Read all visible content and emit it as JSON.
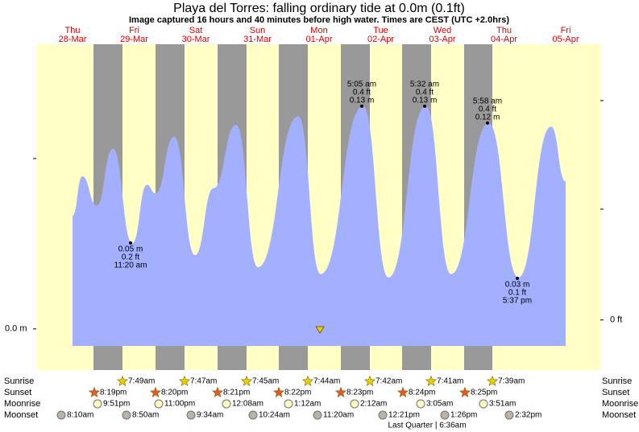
{
  "chart_data": {
    "type": "tide",
    "title": "Playa del Torres: falling  ordinary tide at 0.0m (0.1ft)",
    "subtitle": "Image captured 16 hours and 40 minutes before high water. Times are CEST (UTC +2.0hrs)",
    "days": [
      [
        "Thu",
        "28-Mar"
      ],
      [
        "Fri",
        "29-Mar"
      ],
      [
        "Sat",
        "30-Mar"
      ],
      [
        "Sun",
        "31-Mar"
      ],
      [
        "Mon",
        "01-Apr"
      ],
      [
        "Tue",
        "02-Apr"
      ],
      [
        "Wed",
        "03-Apr"
      ],
      [
        "Thu",
        "04-Apr"
      ],
      [
        "Fri",
        "05-Apr"
      ]
    ],
    "color": "#a3b0ff",
    "x": [
      12,
      15.8,
      21.4,
      27.7,
      35.3,
      41.0,
      44.3,
      51.5,
      59.7,
      66.9,
      75.7,
      84.2,
      99.9,
      108.6,
      125.1,
      135.0,
      149.5,
      159.4,
      174.0,
      185.6,
      198.3,
      204
    ],
    "values": [
      0.066,
      0.089,
      0.072,
      0.105,
      0.05,
      0.084,
      0.079,
      0.112,
      0.043,
      0.082,
      0.119,
      0.036,
      0.124,
      0.032,
      0.13,
      0.03,
      0.13,
      0.032,
      0.12,
      0.03,
      0.118,
      0.086
    ],
    "ylim": [
      -0.024,
      0.166
    ],
    "yticks": [
      {
        "value": 0,
        "label": "0.0 m"
      }
    ],
    "y2lim": [
      -0.2,
      1.1
    ],
    "y2ticks": [
      {
        "value": 0,
        "label": "0 ft"
      }
    ],
    "annotations": [
      {
        "kind": "low",
        "lines": [
          "0.05 m",
          "0.2 ft",
          "11:20 am"
        ]
      },
      {
        "kind": "high",
        "lines": [
          "5:05 am",
          "0.4 ft",
          "0.13 m"
        ]
      },
      {
        "kind": "high",
        "lines": [
          "5:32 am",
          "0.4 ft",
          "0.13 m"
        ]
      },
      {
        "kind": "high",
        "lines": [
          "5:58 am",
          "0.4 ft",
          "0.12 m"
        ]
      },
      {
        "kind": "low",
        "lines": [
          "0.03 m",
          "0.1 ft",
          "5:37 pm"
        ]
      }
    ],
    "rows": [
      {
        "label": "Sunrise",
        "times": [
          "7:49am",
          "7:47am",
          "7:45am",
          "7:44am",
          "7:42am",
          "7:41am",
          "7:39am"
        ]
      },
      {
        "label": "Sunset",
        "times": [
          "8:19pm",
          "8:20pm",
          "8:21pm",
          "8:22pm",
          "8:23pm",
          "8:24pm",
          "8:25pm"
        ]
      },
      {
        "label": "Moonrise",
        "times": [
          "9:51pm",
          "11:00pm",
          "12:08am",
          "1:12am",
          "2:12am",
          "3:05am",
          "3:51am"
        ]
      },
      {
        "label": "Moonset",
        "times": [
          "8:10am",
          "8:50am",
          "9:34am",
          "10:24am",
          "11:20am",
          "12:21pm",
          "1:26pm",
          "2:32pm"
        ]
      }
    ],
    "moon_phase": "Last Quarter | 6:36am"
  }
}
